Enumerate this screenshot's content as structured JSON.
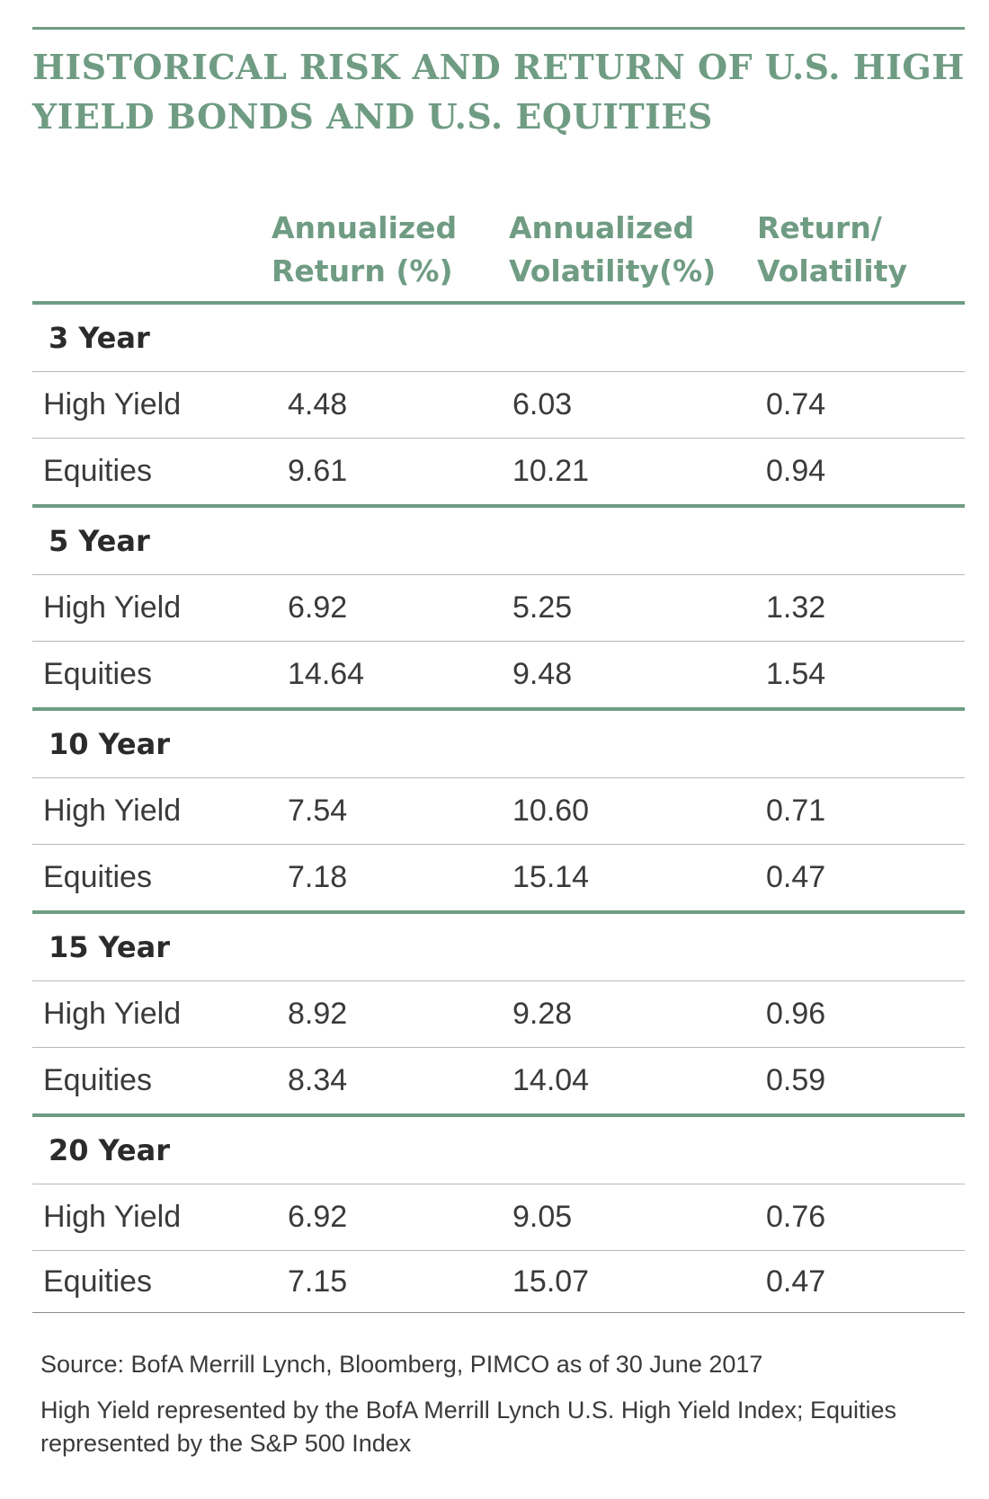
{
  "chart_data": {
    "type": "table",
    "title": "HISTORICAL RISK AND RETURN OF U.S. HIGH YIELD BONDS AND U.S. EQUITIES",
    "columns": [
      "",
      "Annualized Return (%)",
      "Annualized Volatility(%)",
      "Return/ Volatility"
    ],
    "groups": [
      {
        "name": "3 Year",
        "rows": [
          {
            "label": "High Yield",
            "values": [
              "4.48",
              "6.03",
              "0.74"
            ]
          },
          {
            "label": "Equities",
            "values": [
              "9.61",
              "10.21",
              "0.94"
            ]
          }
        ]
      },
      {
        "name": "5 Year",
        "rows": [
          {
            "label": "High Yield",
            "values": [
              "6.92",
              "5.25",
              "1.32"
            ]
          },
          {
            "label": "Equities",
            "values": [
              "14.64",
              "9.48",
              "1.54"
            ]
          }
        ]
      },
      {
        "name": "10 Year",
        "rows": [
          {
            "label": "High Yield",
            "values": [
              "7.54",
              "10.60",
              "0.71"
            ]
          },
          {
            "label": "Equities",
            "values": [
              "7.18",
              "15.14",
              "0.47"
            ]
          }
        ]
      },
      {
        "name": "15 Year",
        "rows": [
          {
            "label": "High Yield",
            "values": [
              "8.92",
              "9.28",
              "0.96"
            ]
          },
          {
            "label": "Equities",
            "values": [
              "8.34",
              "14.04",
              "0.59"
            ]
          }
        ]
      },
      {
        "name": "20 Year",
        "rows": [
          {
            "label": "High Yield",
            "values": [
              "6.92",
              "9.05",
              "0.76"
            ]
          },
          {
            "label": "Equities",
            "values": [
              "7.15",
              "15.07",
              "0.47"
            ]
          }
        ]
      }
    ]
  },
  "header": {
    "title_line1": "HISTORICAL RISK AND RETURN OF U.S. HIGH",
    "title_line2": "YIELD BONDS AND U.S. EQUITIES"
  },
  "table_head": {
    "col1_line1": "Annualized",
    "col1_line2": "Return (%)",
    "col2_line1": "Annualized",
    "col2_line2": "Volatility(%)",
    "col3_line1": "Return/",
    "col3_line2": "Volatility"
  },
  "notes": {
    "source": "Source: BofA Merrill Lynch, Bloomberg, PIMCO as of 30 June 2017",
    "definition": "High Yield represented by the BofA Merrill Lynch U.S. High Yield Index; Equities represented by the S&P 500 Index"
  },
  "colors": {
    "accent": "#6f9c83",
    "text": "#3a3a3a",
    "rule": "#b8b8b8"
  }
}
